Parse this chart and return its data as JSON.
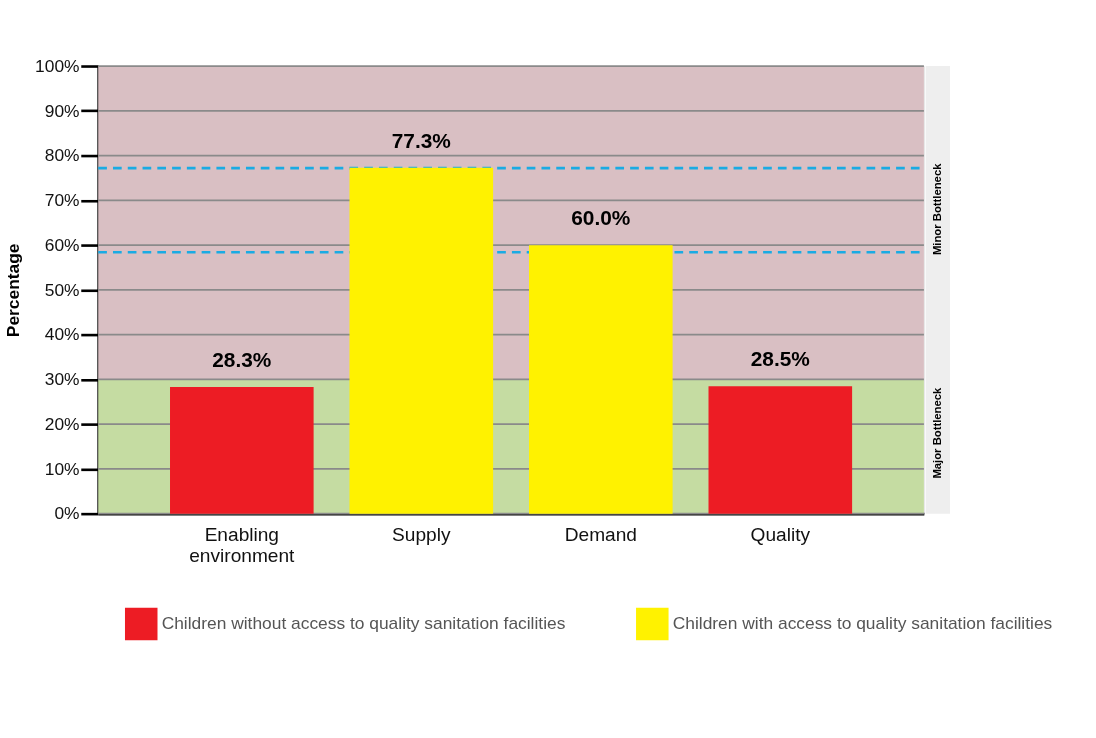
{
  "chart_data": {
    "type": "bar",
    "ylabel": "Percentage",
    "categories": [
      "Enabling environment",
      "Supply",
      "Demand",
      "Quality"
    ],
    "series": [
      {
        "name": "Children without access to quality sanitation facilities",
        "color": "#ed1c24",
        "values": [
          28.3,
          null,
          null,
          28.5
        ],
        "value_labels": [
          "28.3%",
          null,
          null,
          "28.5%"
        ]
      },
      {
        "name": "Children with access to quality sanitation facilities",
        "color": "#fff200",
        "values": [
          null,
          77.3,
          60.0,
          null
        ],
        "value_labels": [
          null,
          "77.3%",
          "60.0%",
          null
        ]
      }
    ],
    "ylim": [
      0,
      100
    ],
    "yticks": [
      {
        "value": 0,
        "label": "0%"
      },
      {
        "value": 10,
        "label": "10%"
      },
      {
        "value": 20,
        "label": "20%"
      },
      {
        "value": 30,
        "label": "30%"
      },
      {
        "value": 40,
        "label": "40%"
      },
      {
        "value": 50,
        "label": "50%"
      },
      {
        "value": 60,
        "label": "60%"
      },
      {
        "value": 70,
        "label": "70%"
      },
      {
        "value": 80,
        "label": "80%"
      },
      {
        "value": 90,
        "label": "90%"
      },
      {
        "value": 100,
        "label": "100%"
      }
    ],
    "grid": "y",
    "legend": "bottom",
    "bands": [
      {
        "axis": "y",
        "from": 0,
        "to": 30,
        "color": "#c5dca2"
      },
      {
        "axis": "y",
        "from": 30,
        "to": 100,
        "color": "#d9bfc3"
      }
    ],
    "ref_lines": [
      {
        "axis": "y",
        "value": 77.2,
        "color": "#1aabe3",
        "line_style": "dashed"
      },
      {
        "axis": "y",
        "value": 58.4,
        "color": "#1aabe3",
        "line_style": "dashed"
      }
    ],
    "annotations": [
      "Minor Bottleneck",
      "Major Bottleneck"
    ]
  }
}
